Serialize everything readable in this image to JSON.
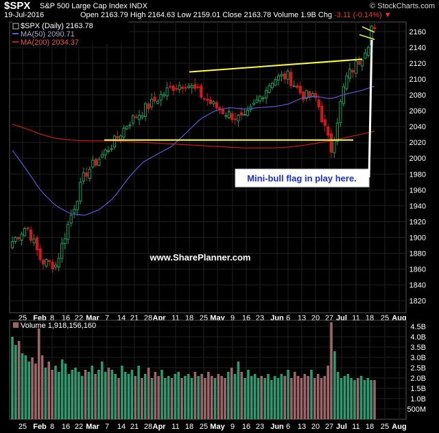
{
  "header": {
    "symbol": "$SPX",
    "name": "S&P 500 Large Cap Index  INDX",
    "brand": "© StockCharts.com",
    "date": "19-Jul-2016",
    "open_label": "Open",
    "open": "2163.79",
    "high_label": "High",
    "high": "2164.63",
    "low_label": "Low",
    "low": "2159.01",
    "close_label": "Close",
    "close": "2163.78",
    "volume_label": "Volume",
    "volume": "1.9B",
    "chg_label": "Chg",
    "chg": "-3.11 (-0.14%)",
    "chg_arrow": "▼"
  },
  "colors": {
    "up": "#10a060",
    "down": "#d01818",
    "ma50": "#5a5ad8",
    "ma200": "#d01818",
    "trendline": "#ffff33",
    "vol_up": "#2c9a70",
    "vol_down": "#9c6668",
    "grid": "#1f1f1f"
  },
  "legend": {
    "price": "$SPX (Daily) 2163.78",
    "ma50": "MA(50) 2090.71",
    "ma200": "MA(200) 2034.37",
    "volume": "Volume 1,918,156,160"
  },
  "annotations": {
    "callout": "Mini-bull flag in play here.",
    "watermark": "www.SharePlanner.com"
  },
  "chart_data": [
    {
      "type": "line",
      "title": "$SPX (Daily)",
      "ylim": [
        1805,
        2172
      ],
      "y_ticks": [
        "1820",
        "1840",
        "1860",
        "1880",
        "1900",
        "1920",
        "1940",
        "1960",
        "1980",
        "2000",
        "2020",
        "2040",
        "2060",
        "2080",
        "2100",
        "2120",
        "2140",
        "2160"
      ],
      "x_tick_labels": [
        "25",
        "Feb",
        "8",
        "16",
        "22",
        "Mar",
        "7",
        "14",
        "21",
        "28",
        "Apr",
        "11",
        "18",
        "25",
        "May",
        "9",
        "16",
        "23",
        "Jun",
        "6",
        "13",
        "20",
        "27",
        "Jul",
        "11",
        "18",
        "25",
        "Aug"
      ],
      "x": [
        "Jan 25",
        "Feb 1",
        "Feb 8",
        "Feb 16",
        "Feb 22",
        "Mar 1",
        "Mar 7",
        "Mar 14",
        "Mar 21",
        "Mar 28",
        "Apr 1",
        "Apr 11",
        "Apr 18",
        "Apr 25",
        "May 2",
        "May 9",
        "May 16",
        "May 23",
        "Jun 1",
        "Jun 6",
        "Jun 13",
        "Jun 20",
        "Jun 27",
        "Jul 1",
        "Jul 11",
        "Jul 18"
      ],
      "series": [
        {
          "name": "$SPX (Daily)",
          "values": [
            1895,
            1915,
            1870,
            1865,
            1925,
            1980,
            2000,
            2020,
            2045,
            2060,
            2075,
            2090,
            2095,
            2080,
            2065,
            2055,
            2048,
            2075,
            2100,
            2104,
            2080,
            2075,
            2010,
            2100,
            2125,
            2163
          ]
        },
        {
          "name": "MA(50)",
          "values": [
            2010,
            1985,
            1958,
            1940,
            1930,
            1928,
            1935,
            1950,
            1975,
            1995,
            2005,
            2015,
            2032,
            2050,
            2060,
            2064,
            2062,
            2064,
            2065,
            2068,
            2076,
            2078,
            2075,
            2081,
            2085,
            2091
          ]
        },
        {
          "name": "MA(200)",
          "values": [
            2043,
            2037,
            2030,
            2025,
            2023,
            2022,
            2022,
            2022,
            2021,
            2020,
            2019,
            2018,
            2017,
            2016,
            2015,
            2014,
            2013,
            2013,
            2013,
            2014,
            2016,
            2019,
            2022,
            2026,
            2030,
            2034
          ]
        }
      ]
    },
    {
      "type": "bar",
      "title": "Volume",
      "ylim": [
        0,
        4.8
      ],
      "y_ticks": [
        "500M",
        "1.0B",
        "1.5B",
        "2.0B",
        "2.5B",
        "3.0B",
        "3.5B",
        "4.0B",
        "4.5B"
      ],
      "values": [
        4.0,
        3.6,
        3.8,
        3.2,
        3.1,
        2.8,
        3.0,
        2.7,
        4.4,
        3.1,
        2.5,
        2.8,
        2.4,
        2.6,
        2.3,
        2.9,
        2.7,
        2.2,
        2.4,
        2.5,
        2.3,
        2.1,
        2.4,
        2.3,
        2.6,
        2.2,
        2.4,
        2.8,
        2.3,
        2.5,
        2.4,
        2.2,
        2.0,
        2.6,
        2.3,
        2.2,
        2.4,
        2.1,
        2.6,
        2.0,
        2.2,
        2.5,
        2.0,
        2.3,
        2.1,
        2.4,
        2.0,
        2.1,
        2.0,
        2.2,
        2.3,
        2.0,
        2.1,
        2.2,
        2.0,
        2.3,
        2.1,
        2.2,
        2.0,
        2.3,
        2.1,
        2.0,
        2.2,
        2.1,
        2.0,
        2.3,
        2.5,
        2.2,
        2.8,
        2.3,
        2.0,
        2.4,
        2.1,
        2.2,
        2.0,
        2.1,
        2.0,
        2.2,
        1.9,
        2.1,
        2.0,
        2.2,
        2.1,
        2.4,
        2.0,
        2.3,
        2.1,
        2.0,
        2.2,
        2.1,
        2.4,
        2.0,
        2.2,
        2.0,
        2.1,
        2.6,
        4.7,
        3.3,
        2.3,
        2.0,
        2.1,
        2.2,
        2.0,
        1.9,
        2.0,
        2.1,
        1.9,
        2.0,
        1.9,
        1.9
      ]
    }
  ]
}
